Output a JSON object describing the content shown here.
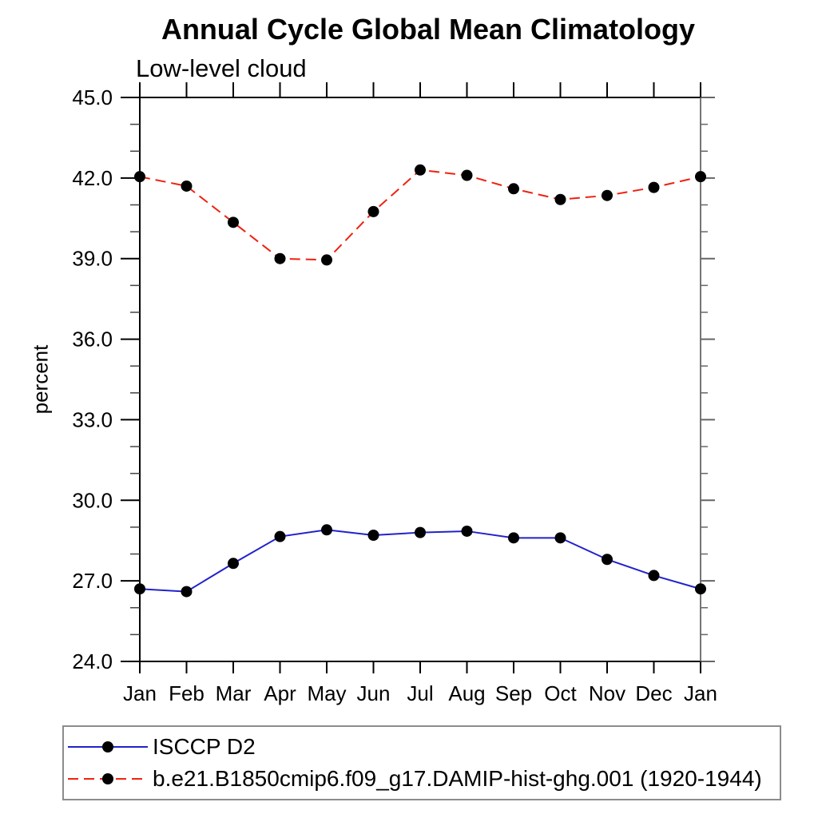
{
  "chart_data": {
    "type": "line",
    "title": "Annual Cycle Global Mean Climatology",
    "subtitle": "Low-level cloud",
    "ylabel": "percent",
    "xlabel": "",
    "categories": [
      "Jan",
      "Feb",
      "Mar",
      "Apr",
      "May",
      "Jun",
      "Jul",
      "Aug",
      "Sep",
      "Oct",
      "Nov",
      "Dec",
      "Jan"
    ],
    "ylim": [
      24.0,
      45.0
    ],
    "y_major_ticks": [
      24,
      27,
      30,
      33,
      36,
      39,
      42,
      45
    ],
    "y_minor_step": 1.0,
    "grid": "off",
    "legend_position": "bottom-left",
    "series": [
      {
        "name": "ISCCP D2",
        "line_style": "solid",
        "color": "#2222cc",
        "marker": "filled-circle",
        "marker_color": "#000000",
        "values": [
          26.7,
          26.6,
          27.65,
          28.65,
          28.9,
          28.7,
          28.8,
          28.85,
          28.6,
          28.6,
          27.8,
          27.2,
          26.7
        ]
      },
      {
        "name": "b.e21.B1850cmip6.f09_g17.DAMIP-hist-ghg.001 (1920-1944)",
        "line_style": "dashed",
        "color": "#ee2211",
        "marker": "filled-circle",
        "marker_color": "#000000",
        "values": [
          42.05,
          41.7,
          40.35,
          39.0,
          38.95,
          40.75,
          42.3,
          42.1,
          41.6,
          41.2,
          41.35,
          41.65,
          42.05
        ]
      }
    ],
    "colors": {
      "axis": "#000000",
      "right_axis": "#666666",
      "minor_tick": "#444444",
      "legend_border": "#8c8c8c"
    }
  }
}
